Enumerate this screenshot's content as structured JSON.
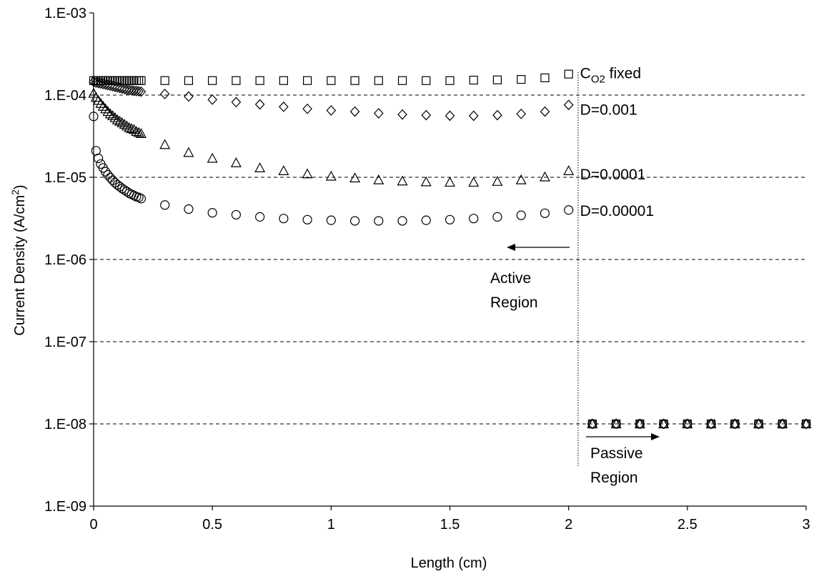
{
  "chart_data": {
    "type": "scatter",
    "title": "",
    "xlabel": "Length (cm)",
    "ylabel": "Current Density (A/cm²)",
    "ylabel_parts": {
      "main": "Current Density (A/cm",
      "sup": "2",
      "close": ")"
    },
    "xlim": [
      0,
      3
    ],
    "ylim": [
      1e-09,
      0.001
    ],
    "yscale": "log",
    "grid": "horizontal dashed",
    "xticks": [
      0,
      0.5,
      1,
      1.5,
      2,
      2.5,
      3
    ],
    "xtick_labels": [
      "0",
      "0.5",
      "1",
      "1.5",
      "2",
      "2.5",
      "3"
    ],
    "yticks": [
      1e-09,
      1e-08,
      1e-07,
      1e-06,
      1e-05,
      0.0001,
      0.001
    ],
    "ytick_labels": [
      "1.E-09",
      "1.E-08",
      "1.E-07",
      "1.E-06",
      "1.E-05",
      "1.E-04",
      "1.E-03"
    ],
    "series": [
      {
        "marker": "square",
        "label_parts": {
          "main": "C",
          "sub": "O2",
          "rest": " fixed"
        },
        "points": [
          [
            0,
            0.00015
          ],
          [
            0.01,
            0.00015
          ],
          [
            0.02,
            0.00015
          ],
          [
            0.03,
            0.00015
          ],
          [
            0.04,
            0.00015
          ],
          [
            0.05,
            0.00015
          ],
          [
            0.06,
            0.00015
          ],
          [
            0.07,
            0.00015
          ],
          [
            0.08,
            0.00015
          ],
          [
            0.09,
            0.00015
          ],
          [
            0.1,
            0.00015
          ],
          [
            0.11,
            0.00015
          ],
          [
            0.12,
            0.00015
          ],
          [
            0.13,
            0.00015
          ],
          [
            0.14,
            0.00015
          ],
          [
            0.15,
            0.00015
          ],
          [
            0.16,
            0.00015
          ],
          [
            0.17,
            0.00015
          ],
          [
            0.18,
            0.00015
          ],
          [
            0.19,
            0.00015
          ],
          [
            0.2,
            0.00015
          ],
          [
            0.3,
            0.00015
          ],
          [
            0.4,
            0.00015
          ],
          [
            0.5,
            0.00015
          ],
          [
            0.6,
            0.00015
          ],
          [
            0.7,
            0.00015
          ],
          [
            0.8,
            0.00015
          ],
          [
            0.9,
            0.00015
          ],
          [
            1.0,
            0.00015
          ],
          [
            1.1,
            0.00015
          ],
          [
            1.2,
            0.00015
          ],
          [
            1.3,
            0.00015
          ],
          [
            1.4,
            0.00015
          ],
          [
            1.5,
            0.00015
          ],
          [
            1.6,
            0.000152
          ],
          [
            1.7,
            0.000153
          ],
          [
            1.8,
            0.000155
          ],
          [
            1.9,
            0.000162
          ],
          [
            2.0,
            0.00018
          ],
          [
            2.1,
            1e-08
          ],
          [
            2.2,
            1e-08
          ],
          [
            2.3,
            1e-08
          ],
          [
            2.4,
            1e-08
          ],
          [
            2.5,
            1e-08
          ],
          [
            2.6,
            1e-08
          ],
          [
            2.7,
            1e-08
          ],
          [
            2.8,
            1e-08
          ],
          [
            2.9,
            1e-08
          ],
          [
            3.0,
            1e-08
          ]
        ]
      },
      {
        "marker": "diamond",
        "label": "D=0.001",
        "points": [
          [
            0,
            0.000145
          ],
          [
            0.01,
            0.000142
          ],
          [
            0.02,
            0.00014
          ],
          [
            0.03,
            0.000138
          ],
          [
            0.04,
            0.000136
          ],
          [
            0.05,
            0.000134
          ],
          [
            0.06,
            0.000132
          ],
          [
            0.07,
            0.00013
          ],
          [
            0.08,
            0.000128
          ],
          [
            0.09,
            0.000126
          ],
          [
            0.1,
            0.000124
          ],
          [
            0.11,
            0.000122
          ],
          [
            0.12,
            0.00012
          ],
          [
            0.13,
            0.000118
          ],
          [
            0.14,
            0.000116
          ],
          [
            0.15,
            0.000115
          ],
          [
            0.16,
            0.000114
          ],
          [
            0.17,
            0.000113
          ],
          [
            0.18,
            0.000112
          ],
          [
            0.19,
            0.000111
          ],
          [
            0.2,
            0.00011
          ],
          [
            0.3,
            0.000103
          ],
          [
            0.4,
            9.6e-05
          ],
          [
            0.5,
            8.8e-05
          ],
          [
            0.6,
            8.2e-05
          ],
          [
            0.7,
            7.7e-05
          ],
          [
            0.8,
            7.2e-05
          ],
          [
            0.9,
            6.8e-05
          ],
          [
            1.0,
            6.5e-05
          ],
          [
            1.1,
            6.3e-05
          ],
          [
            1.2,
            6e-05
          ],
          [
            1.3,
            5.8e-05
          ],
          [
            1.4,
            5.7e-05
          ],
          [
            1.5,
            5.6e-05
          ],
          [
            1.6,
            5.6e-05
          ],
          [
            1.7,
            5.7e-05
          ],
          [
            1.8,
            5.9e-05
          ],
          [
            1.9,
            6.3e-05
          ],
          [
            2.0,
            7.6e-05
          ],
          [
            2.1,
            1e-08
          ],
          [
            2.2,
            1e-08
          ],
          [
            2.3,
            1e-08
          ],
          [
            2.4,
            1e-08
          ],
          [
            2.5,
            1e-08
          ],
          [
            2.6,
            1e-08
          ],
          [
            2.7,
            1e-08
          ],
          [
            2.8,
            1e-08
          ],
          [
            2.9,
            1e-08
          ],
          [
            3.0,
            1e-08
          ]
        ]
      },
      {
        "marker": "triangle",
        "label": "D=0.0001",
        "points": [
          [
            0,
            0.000105
          ],
          [
            0.01,
            9.4e-05
          ],
          [
            0.02,
            8.6e-05
          ],
          [
            0.03,
            7.9e-05
          ],
          [
            0.04,
            7.3e-05
          ],
          [
            0.05,
            6.8e-05
          ],
          [
            0.06,
            6.3e-05
          ],
          [
            0.07,
            5.9e-05
          ],
          [
            0.08,
            5.6e-05
          ],
          [
            0.09,
            5.3e-05
          ],
          [
            0.1,
            5e-05
          ],
          [
            0.11,
            4.8e-05
          ],
          [
            0.12,
            4.6e-05
          ],
          [
            0.13,
            4.4e-05
          ],
          [
            0.14,
            4.2e-05
          ],
          [
            0.15,
            4e-05
          ],
          [
            0.16,
            3.9e-05
          ],
          [
            0.17,
            3.8e-05
          ],
          [
            0.18,
            3.6e-05
          ],
          [
            0.19,
            3.5e-05
          ],
          [
            0.2,
            3.4e-05
          ],
          [
            0.3,
            2.5e-05
          ],
          [
            0.4,
            2e-05
          ],
          [
            0.5,
            1.7e-05
          ],
          [
            0.6,
            1.5e-05
          ],
          [
            0.7,
            1.3e-05
          ],
          [
            0.8,
            1.2e-05
          ],
          [
            0.9,
            1.1e-05
          ],
          [
            1.0,
            1.03e-05
          ],
          [
            1.1,
            9.8e-06
          ],
          [
            1.2,
            9.3e-06
          ],
          [
            1.3,
            9e-06
          ],
          [
            1.4,
            8.8e-06
          ],
          [
            1.5,
            8.7e-06
          ],
          [
            1.6,
            8.7e-06
          ],
          [
            1.7,
            8.9e-06
          ],
          [
            1.8,
            9.3e-06
          ],
          [
            1.9,
            1.01e-05
          ],
          [
            2.0,
            1.2e-05
          ],
          [
            2.1,
            1e-08
          ],
          [
            2.2,
            1e-08
          ],
          [
            2.3,
            1e-08
          ],
          [
            2.4,
            1e-08
          ],
          [
            2.5,
            1e-08
          ],
          [
            2.6,
            1e-08
          ],
          [
            2.7,
            1e-08
          ],
          [
            2.8,
            1e-08
          ],
          [
            2.9,
            1e-08
          ],
          [
            3.0,
            1e-08
          ]
        ]
      },
      {
        "marker": "circle",
        "label": "D=0.00001",
        "points": [
          [
            0,
            5.5e-05
          ],
          [
            0.01,
            2.1e-05
          ],
          [
            0.02,
            1.7e-05
          ],
          [
            0.03,
            1.45e-05
          ],
          [
            0.04,
            1.3e-05
          ],
          [
            0.05,
            1.17e-05
          ],
          [
            0.06,
            1.07e-05
          ],
          [
            0.07,
            9.9e-06
          ],
          [
            0.08,
            9.2e-06
          ],
          [
            0.09,
            8.6e-06
          ],
          [
            0.1,
            8.1e-06
          ],
          [
            0.11,
            7.7e-06
          ],
          [
            0.12,
            7.3e-06
          ],
          [
            0.13,
            7e-06
          ],
          [
            0.14,
            6.7e-06
          ],
          [
            0.15,
            6.4e-06
          ],
          [
            0.16,
            6.2e-06
          ],
          [
            0.17,
            6e-06
          ],
          [
            0.18,
            5.8e-06
          ],
          [
            0.19,
            5.7e-06
          ],
          [
            0.2,
            5.5e-06
          ],
          [
            0.3,
            4.6e-06
          ],
          [
            0.4,
            4.1e-06
          ],
          [
            0.5,
            3.7e-06
          ],
          [
            0.6,
            3.5e-06
          ],
          [
            0.7,
            3.3e-06
          ],
          [
            0.8,
            3.15e-06
          ],
          [
            0.9,
            3.05e-06
          ],
          [
            1.0,
            3e-06
          ],
          [
            1.1,
            2.95e-06
          ],
          [
            1.2,
            2.95e-06
          ],
          [
            1.3,
            2.95e-06
          ],
          [
            1.4,
            3e-06
          ],
          [
            1.5,
            3.05e-06
          ],
          [
            1.6,
            3.15e-06
          ],
          [
            1.7,
            3.3e-06
          ],
          [
            1.8,
            3.45e-06
          ],
          [
            1.9,
            3.65e-06
          ],
          [
            2.0,
            4e-06
          ],
          [
            2.1,
            1e-08
          ],
          [
            2.2,
            1e-08
          ],
          [
            2.3,
            1e-08
          ],
          [
            2.4,
            1e-08
          ],
          [
            2.5,
            1e-08
          ],
          [
            2.6,
            1e-08
          ],
          [
            2.7,
            1e-08
          ],
          [
            2.8,
            1e-08
          ],
          [
            2.9,
            1e-08
          ],
          [
            3.0,
            1e-08
          ]
        ]
      }
    ],
    "boundary_x": 2.04,
    "annotations": {
      "active_line1": "Active",
      "active_line2": "Region",
      "passive_line1": "Passive",
      "passive_line2": "Region"
    }
  }
}
